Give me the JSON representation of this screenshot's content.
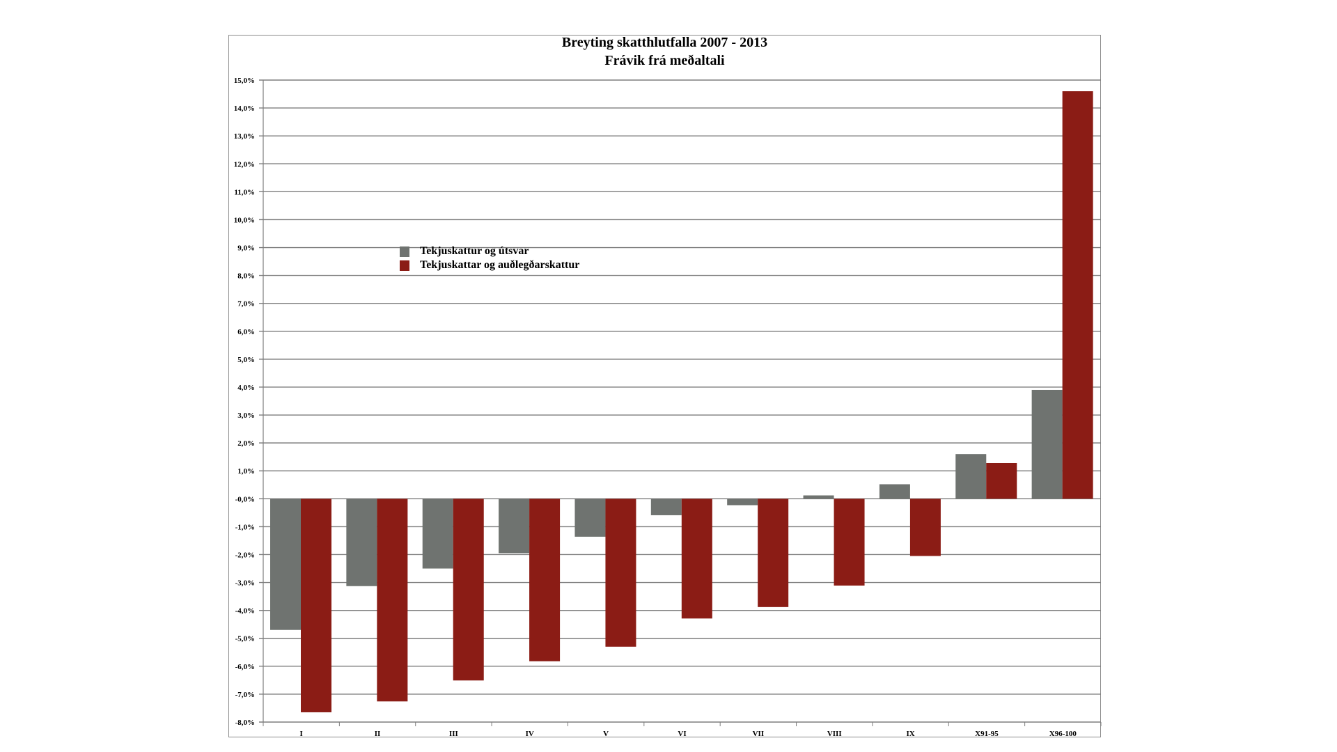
{
  "chart_data": {
    "type": "bar",
    "title": "Breyting skatthlutfalla 2007 - 2013",
    "subtitle": "Frávik frá meðaltali",
    "xlabel": "",
    "ylabel": "",
    "ylim": [
      -8,
      15
    ],
    "grid": true,
    "legend_position": "upper-left",
    "categories": [
      "I",
      "II",
      "III",
      "IV",
      "V",
      "VI",
      "VII",
      "VIII",
      "IX",
      "X91-95",
      "X96-100"
    ],
    "y_ticks": [
      "15,0%",
      "14,0%",
      "13,0%",
      "12,0%",
      "11,0%",
      "10,0%",
      "9,0%",
      "8,0%",
      "7,0%",
      "6,0%",
      "5,0%",
      "4,0%",
      "3,0%",
      "2,0%",
      "1,0%",
      "-0,0%",
      "-1,0%",
      "-2,0%",
      "-3,0%",
      "-4,0%",
      "-5,0%",
      "-6,0%",
      "-7,0%",
      "-8,0%"
    ],
    "series": [
      {
        "name": "Tekjuskattur og útsvar",
        "color": "#6f7370",
        "values": [
          -4.7,
          -3.13,
          -2.5,
          -1.95,
          -1.36,
          -0.59,
          -0.23,
          0.12,
          0.52,
          1.6,
          3.9
        ]
      },
      {
        "name": "Tekjuskattar og auðlegðarskattur",
        "color": "#8b1c15",
        "values": [
          -7.65,
          -7.26,
          -6.51,
          -5.82,
          -5.3,
          -4.29,
          -3.88,
          -3.11,
          -2.05,
          1.28,
          14.6
        ]
      }
    ]
  }
}
